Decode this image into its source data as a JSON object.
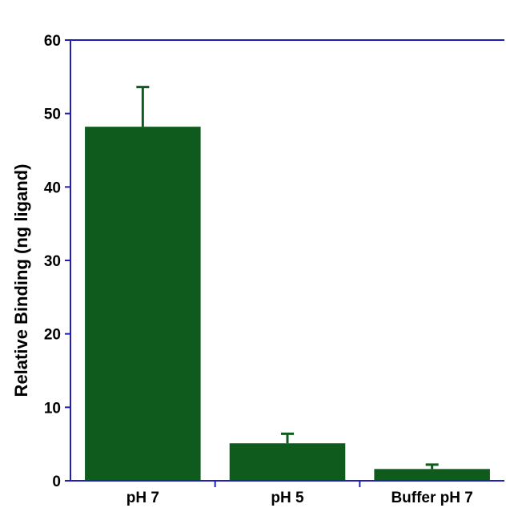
{
  "chart_data": {
    "type": "bar",
    "title": "",
    "xlabel": "",
    "ylabel": "Relative Binding (ng ligand)",
    "categories": [
      "pH 7",
      "pH 5",
      "Buffer pH 7"
    ],
    "values": [
      48.2,
      5.1,
      1.6
    ],
    "errors": [
      5.4,
      1.3,
      0.6
    ],
    "ylim": [
      0,
      60
    ],
    "yticks": [
      0,
      10,
      20,
      30,
      40,
      50,
      60
    ],
    "ytick_labels": [
      "0",
      "10",
      "20",
      "30",
      "40",
      "50",
      "60"
    ],
    "grid": false,
    "legend": "none",
    "colors": {
      "bar": "#0f5a1d",
      "error_bar": "#0f5a1d",
      "axis": "#1f1fb4"
    }
  }
}
